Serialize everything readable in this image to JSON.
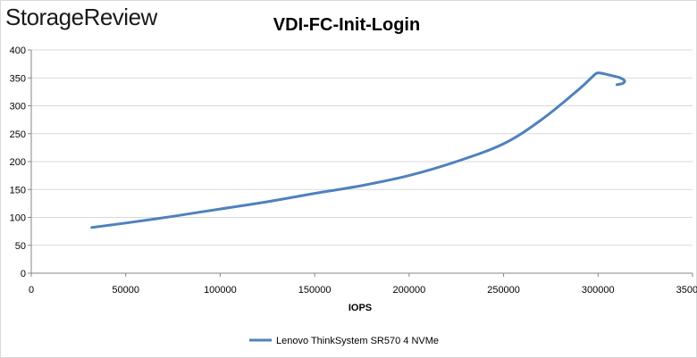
{
  "brand": {
    "logo_text": "StorageReview"
  },
  "chart_data": {
    "type": "line",
    "title": "VDI-FC-Init-Login",
    "xlabel": "IOPS",
    "ylabel": "",
    "xlim": [
      0,
      350000
    ],
    "ylim": [
      0,
      400
    ],
    "x_ticks": [
      0,
      50000,
      100000,
      150000,
      200000,
      250000,
      300000,
      350000
    ],
    "y_ticks": [
      0,
      50,
      100,
      150,
      200,
      250,
      300,
      350,
      400
    ],
    "grid": {
      "horizontal": true,
      "vertical": false
    },
    "legend_position": "bottom",
    "series": [
      {
        "name": "Lenovo ThinkSystem SR570 4 NVMe",
        "color": "#4f81bd",
        "points": [
          [
            32000,
            82
          ],
          [
            50000,
            90
          ],
          [
            75000,
            102
          ],
          [
            100000,
            115
          ],
          [
            125000,
            128
          ],
          [
            150000,
            143
          ],
          [
            175000,
            157
          ],
          [
            200000,
            175
          ],
          [
            225000,
            200
          ],
          [
            250000,
            232
          ],
          [
            270000,
            275
          ],
          [
            290000,
            330
          ],
          [
            297000,
            352
          ],
          [
            300000,
            359
          ],
          [
            306000,
            355
          ],
          [
            311000,
            351
          ],
          [
            314000,
            345
          ],
          [
            313000,
            340
          ],
          [
            310000,
            338
          ]
        ]
      }
    ]
  }
}
